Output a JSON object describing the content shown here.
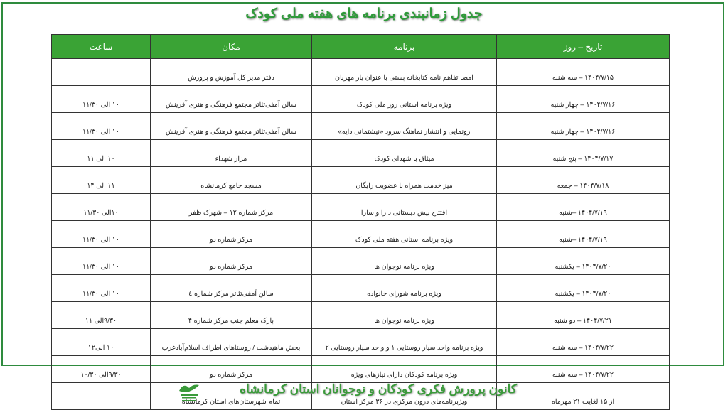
{
  "title": "جدول زمانبندی برنامه های هفته ملی کودک",
  "headers": [
    "تاریخ – روز",
    "برنامه",
    "مکان",
    "ساعت"
  ],
  "rows": [
    [
      "۱۴۰۴/۷/۱۵ – سه شنبه",
      "امضا تفاهم نامه   کتابخانه پستی با عنوان یار مهربان",
      "دفتر مدیر کل آموزش و پرورش",
      ""
    ],
    [
      "۱۴۰۴/۷/۱۶ – چهار شنبه",
      "ویژه برنامه استانی روز ملی کودک",
      "سالن آمفی‌تئاتر مجتمع فرهنگی و هنری آفرینش",
      "۱۰ الی ۱۱/۳۰"
    ],
    [
      "۱۴۰۴/۷/۱۶ – چهار شنبه",
      "رونمایی و انتشار نماهنگ سرود «نیشتمانی دایه»",
      "سالن آمفی‌تئاتر مجتمع فرهنگی و هنری آفرینش",
      "۱۰ الی ۱۱/۳۰"
    ],
    [
      "۱۴۰۴/۷/۱۷ – پنج شنبه",
      "میثاق با شهدای کودک",
      "مزار شهداء",
      "۱۰ الی ۱۱"
    ],
    [
      "۱۴۰۴/۷/۱۸ – جمعه",
      "میز خدمت همراه با عضویت رایگان",
      "مسجد جامع کرمانشاه",
      "۱۱ الی ۱۴"
    ],
    [
      "۱۴۰۴/۷/۱۹ –شنبه",
      "افتتاح پیش دبستانی دارا و سارا",
      "مرکز شماره ۱۲ – شهرک ظفر",
      "۱۰الی ۱۱/۳۰"
    ],
    [
      "۱۴۰۴/۷/۱۹ –شنبه",
      "ویژه برنامه استانی هفته ملی کودک",
      "مرکز شماره دو",
      "۱۰ الی ۱۱/۳۰"
    ],
    [
      "۱۴۰۴/۷/۲۰ – یکشنبه",
      "ویژه برنامه نوجوان ها",
      "مرکز شماره دو",
      "۱۰ الی ۱۱/۳۰"
    ],
    [
      "۱۴۰۴/۷/۲۰ – یکشنبه",
      "ویژه برنامه شورای خانواده",
      "سالن آمفی‌تئاتر مرکز شماره ٤",
      "۱۰ الی ۱۱/۳۰"
    ],
    [
      "۱۴۰۴/۷/۲۱ – دو شنبه",
      "ویژه برنامه نوجوان ها",
      "پارک معلم جنب مرکز شماره ۴",
      "۹/۳۰الی ۱۱"
    ],
    [
      "۱۴۰۴/۷/۲۲ – سه شنبه",
      "ویژه برنامه واحد سیار روستایی ۱ و واحد سیار روستایی ۲",
      "بخش ماهیدشت /  روستاهای اطراف اسلام‌آبادغرب",
      "۱۰ الی۱۲"
    ],
    [
      "۱۴۰۴/۷/۲۲ – سه شنبه",
      "ویژه برنامه کودکان دارای نیازهای ویژه",
      "مرکز شماره دو",
      "۹/۳۰الی ۱۰/۳۰"
    ],
    [
      "از ۱۵ لغایت ۲۱ مهرماه",
      "ویژ‌برنامه‌های درون مرکزی در ۳۶ مرکز استان",
      "تمام شهرستان‌های استان کرمانشاه",
      ""
    ]
  ],
  "footer": "کانون پرورش فکری کودکان و نوجوانان استان کرمانشاه",
  "logo_text": "کانون پرورش فکری کودکان و نوجوانان",
  "colors": {
    "accent": "#3aa335",
    "frame": "#2e8b3e"
  }
}
